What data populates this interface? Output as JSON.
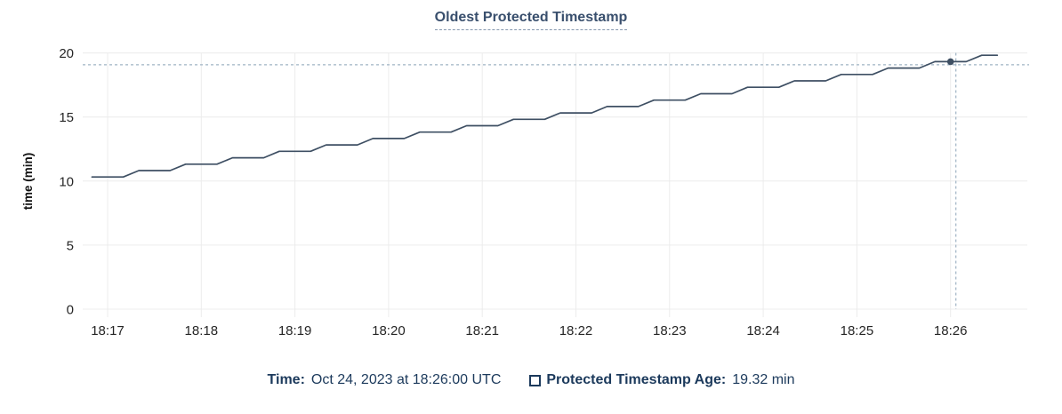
{
  "header": {
    "title": "Oldest Protected Timestamp"
  },
  "footer": {
    "time_label": "Time:",
    "time_value": "Oct 24, 2023 at 18:26:00 UTC",
    "series_label": "Protected Timestamp Age:",
    "series_value": "19.32 min"
  },
  "colors": {
    "title": "#394f6d",
    "line": "#3e4f63",
    "marker": "#3e4f63",
    "grid": "#ececec",
    "crosshair": "#9fb3c4",
    "tick_text": "#262626",
    "legend_text": "#1c3a5c"
  },
  "chart_data": {
    "type": "line",
    "title": "Oldest Protected Timestamp",
    "xlabel": "",
    "ylabel": "time (min)",
    "ylim": [
      0,
      20
    ],
    "y_ticks": [
      0,
      5,
      10,
      15,
      20
    ],
    "x_ticks": [
      "18:17",
      "18:18",
      "18:19",
      "18:20",
      "18:21",
      "18:22",
      "18:23",
      "18:24",
      "18:25",
      "18:26"
    ],
    "grid": true,
    "legend_position": "bottom",
    "series": [
      {
        "name": "Protected Timestamp Age",
        "unit": "min",
        "points": [
          [
            -0.167,
            10.32
          ],
          [
            0,
            10.32
          ],
          [
            0.167,
            10.32
          ],
          [
            0.333,
            10.82
          ],
          [
            0.5,
            10.82
          ],
          [
            0.667,
            10.82
          ],
          [
            0.833,
            11.32
          ],
          [
            1,
            11.32
          ],
          [
            1.167,
            11.32
          ],
          [
            1.333,
            11.82
          ],
          [
            1.5,
            11.82
          ],
          [
            1.667,
            11.82
          ],
          [
            1.833,
            12.32
          ],
          [
            2,
            12.32
          ],
          [
            2.167,
            12.32
          ],
          [
            2.333,
            12.82
          ],
          [
            2.5,
            12.82
          ],
          [
            2.667,
            12.82
          ],
          [
            2.833,
            13.32
          ],
          [
            3,
            13.32
          ],
          [
            3.167,
            13.32
          ],
          [
            3.333,
            13.82
          ],
          [
            3.5,
            13.82
          ],
          [
            3.667,
            13.82
          ],
          [
            3.833,
            14.32
          ],
          [
            4,
            14.32
          ],
          [
            4.167,
            14.32
          ],
          [
            4.333,
            14.82
          ],
          [
            4.5,
            14.82
          ],
          [
            4.667,
            14.82
          ],
          [
            4.833,
            15.32
          ],
          [
            5,
            15.32
          ],
          [
            5.167,
            15.32
          ],
          [
            5.333,
            15.82
          ],
          [
            5.5,
            15.82
          ],
          [
            5.667,
            15.82
          ],
          [
            5.833,
            16.32
          ],
          [
            6,
            16.32
          ],
          [
            6.167,
            16.32
          ],
          [
            6.333,
            16.82
          ],
          [
            6.5,
            16.82
          ],
          [
            6.667,
            16.82
          ],
          [
            6.833,
            17.32
          ],
          [
            7,
            17.32
          ],
          [
            7.167,
            17.32
          ],
          [
            7.333,
            17.82
          ],
          [
            7.5,
            17.82
          ],
          [
            7.667,
            17.82
          ],
          [
            7.833,
            18.32
          ],
          [
            8,
            18.32
          ],
          [
            8.167,
            18.32
          ],
          [
            8.333,
            18.82
          ],
          [
            8.5,
            18.82
          ],
          [
            8.667,
            18.82
          ],
          [
            8.833,
            19.32
          ],
          [
            9,
            19.32
          ],
          [
            9.167,
            19.32
          ],
          [
            9.333,
            19.82
          ],
          [
            9.5,
            19.82
          ]
        ]
      }
    ],
    "highlight": {
      "x_label": "18:26",
      "t": 9.0,
      "value": 19.32,
      "value_display": "19.32 min",
      "time_display": "Oct 24, 2023 at 18:26:00 UTC"
    }
  }
}
